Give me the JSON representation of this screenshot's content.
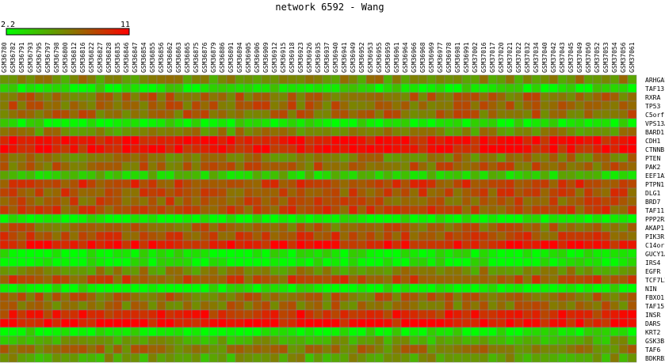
{
  "chart_data": {
    "type": "heatmap",
    "title": "network 6592 - Wang",
    "legend": {
      "min_label": "2.2",
      "max_label": "11",
      "min": 2.2,
      "max": 11,
      "low_color": "#00ff00",
      "high_color": "#ff0000"
    },
    "columns": [
      "GSM36780",
      "GSM36782",
      "GSM36791",
      "GSM36793",
      "GSM36795",
      "GSM36797",
      "GSM36798",
      "GSM36800",
      "GSM36812",
      "GSM36816",
      "GSM36822",
      "GSM36827",
      "GSM36828",
      "GSM36835",
      "GSM36846",
      "GSM36847",
      "GSM36854",
      "GSM36855",
      "GSM36856",
      "GSM36862",
      "GSM36863",
      "GSM36865",
      "GSM36875",
      "GSM36876",
      "GSM36879",
      "GSM36886",
      "GSM36891",
      "GSM36894",
      "GSM36905",
      "GSM36906",
      "GSM36909",
      "GSM36912",
      "GSM36915",
      "GSM36918",
      "GSM36923",
      "GSM36926",
      "GSM36935",
      "GSM36937",
      "GSM36940",
      "GSM36941",
      "GSM36949",
      "GSM36952",
      "GSM36953",
      "GSM36955",
      "GSM36959",
      "GSM36961",
      "GSM36964",
      "GSM36966",
      "GSM36968",
      "GSM36969",
      "GSM36977",
      "GSM36978",
      "GSM36981",
      "GSM36991",
      "GSM37002",
      "GSM37016",
      "GSM37017",
      "GSM37020",
      "GSM37021",
      "GSM37022",
      "GSM37032",
      "GSM37034",
      "GSM37040",
      "GSM37042",
      "GSM37043",
      "GSM37045",
      "GSM37049",
      "GSM37050",
      "GSM37052",
      "GSM37053",
      "GSM37054",
      "GSM37056",
      "GSM37061"
    ],
    "rows": [
      "ARHGAP26",
      "TAF13",
      "RXRA",
      "TP53",
      "C5orf13",
      "VPS13A",
      "BARD1",
      "CDH1",
      "CTNNB1",
      "PTEN",
      "PAK2",
      "EEF1A2",
      "PTPN11",
      "DLG1",
      "BRD7",
      "TAF11",
      "PPP2R2B",
      "AKAP11",
      "PIK3R1",
      "C14orf166",
      "GUCY1A2",
      "IRS4",
      "EGFR",
      "TCF7L2",
      "NIN",
      "FBXO11",
      "TAF15",
      "INSR",
      "DARS",
      "KRT2",
      "GSK3B",
      "TAF6",
      "BDKRB2"
    ],
    "row_means": [
      6.2,
      3.0,
      7.4,
      7.6,
      7.5,
      2.9,
      6.3,
      10.4,
      10.2,
      6.8,
      7.6,
      4.2,
      8.7,
      8.3,
      8.0,
      8.4,
      2.4,
      7.5,
      8.4,
      10.0,
      2.6,
      2.5,
      6.2,
      8.3,
      2.6,
      7.4,
      7.3,
      9.6,
      10.3,
      2.8,
      5.2,
      6.9,
      5.6
    ],
    "spread": 1.4
  }
}
